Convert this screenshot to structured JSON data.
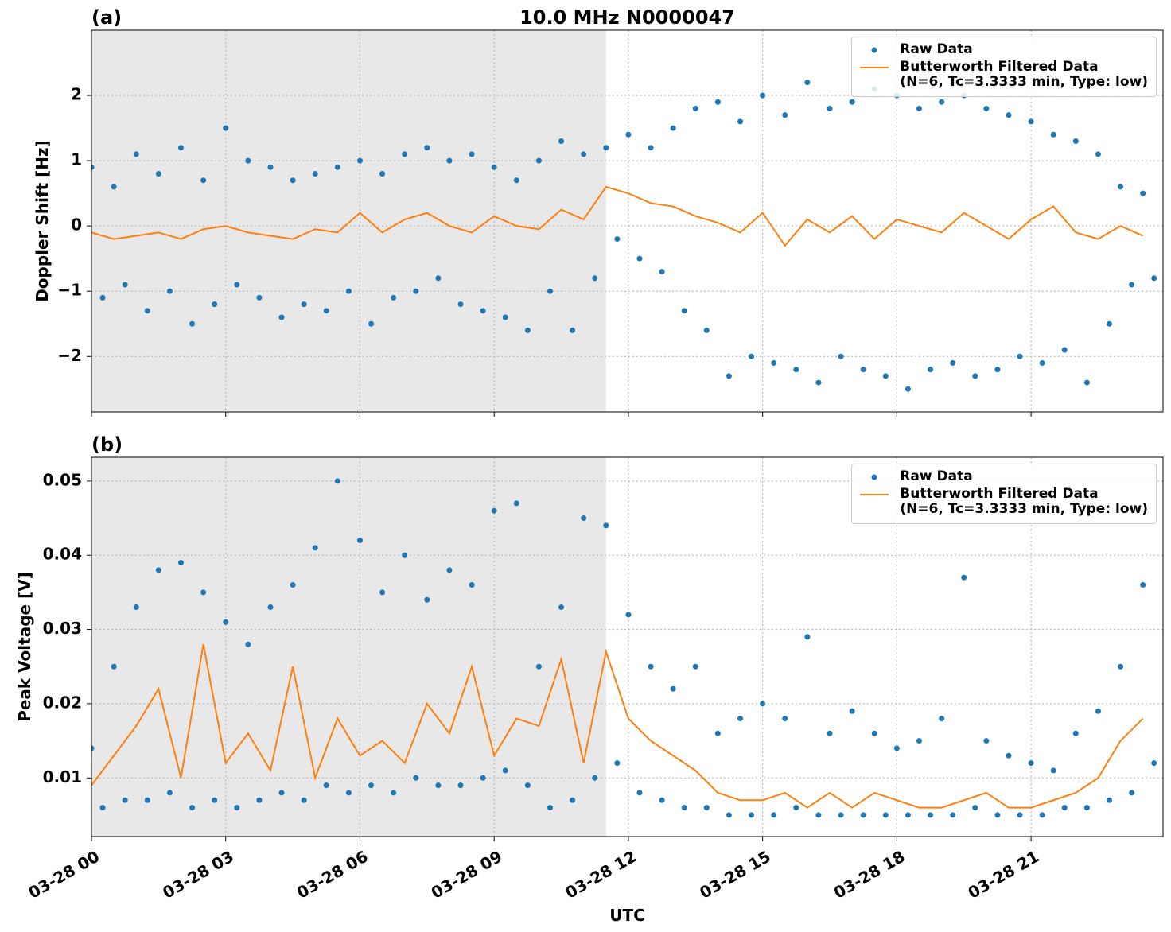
{
  "chart_data": [
    {
      "type": "scatter",
      "panel_label": "(a)",
      "title": "10.0 MHz N0000047",
      "y_label": "Doppler Shift [Hz]",
      "xlim": [
        0,
        23.95
      ],
      "ylim": [
        -2.85,
        3.0
      ],
      "xticks": [
        0,
        3,
        6,
        9,
        12,
        15,
        18,
        21
      ],
      "yticks": [
        {
          "value": -2,
          "label": "−2"
        },
        {
          "value": -1,
          "label": "−1"
        },
        0,
        1,
        2
      ],
      "grid": true,
      "shaded_span": [
        0,
        11.5
      ],
      "shade_color": "#e8e8e8",
      "legend": "upper right",
      "series": [
        {
          "name": "Raw Data",
          "mode": "markers",
          "color": "#1f77b4",
          "x": [
            0,
            0.25,
            0.5,
            0.75,
            1,
            1.25,
            1.5,
            1.75,
            2,
            2.25,
            2.5,
            2.75,
            3,
            3.25,
            3.5,
            3.75,
            4,
            4.25,
            4.5,
            4.75,
            5,
            5.25,
            5.5,
            5.75,
            6,
            6.25,
            6.5,
            6.75,
            7,
            7.25,
            7.5,
            7.75,
            8,
            8.25,
            8.5,
            8.75,
            9,
            9.25,
            9.5,
            9.75,
            10,
            10.25,
            10.5,
            10.75,
            11,
            11.25,
            11.5,
            11.75,
            12,
            12.25,
            12.5,
            12.75,
            13,
            13.25,
            13.5,
            13.75,
            14,
            14.25,
            14.5,
            14.75,
            15,
            15.25,
            15.5,
            15.75,
            16,
            16.25,
            16.5,
            16.75,
            17,
            17.25,
            17.5,
            17.75,
            18,
            18.25,
            18.5,
            18.75,
            19,
            19.25,
            19.5,
            19.75,
            20,
            20.25,
            20.5,
            20.75,
            21,
            21.25,
            21.5,
            21.75,
            22,
            22.25,
            22.5,
            22.75,
            23,
            23.25,
            23.5,
            23.75
          ],
          "values": [
            0.9,
            -1.1,
            0.6,
            -0.9,
            1.1,
            -1.3,
            0.8,
            -1.0,
            1.2,
            -1.5,
            0.7,
            -1.2,
            1.5,
            -0.9,
            1.0,
            -1.1,
            0.9,
            -1.4,
            0.7,
            -1.2,
            0.8,
            -1.3,
            0.9,
            -1.0,
            1.0,
            -1.5,
            0.8,
            -1.1,
            1.1,
            -1.0,
            1.2,
            -0.8,
            1.0,
            -1.2,
            1.1,
            -1.3,
            0.9,
            -1.4,
            0.7,
            -1.6,
            1.0,
            -1.0,
            1.3,
            -1.6,
            1.1,
            -0.8,
            1.2,
            -0.2,
            1.4,
            -0.5,
            1.2,
            -0.7,
            1.5,
            -1.3,
            1.8,
            -1.6,
            1.9,
            -2.3,
            1.6,
            -2.0,
            2.0,
            -2.1,
            1.7,
            -2.2,
            2.2,
            -2.4,
            1.8,
            -2.0,
            1.9,
            -2.2,
            2.1,
            -2.3,
            2.0,
            -2.5,
            1.8,
            -2.2,
            1.9,
            -2.1,
            2.0,
            -2.3,
            1.8,
            -2.2,
            1.7,
            -2.0,
            1.6,
            -2.1,
            1.4,
            -1.9,
            1.3,
            -2.4,
            1.1,
            -1.5,
            0.6,
            -0.9,
            0.5,
            -0.8
          ]
        },
        {
          "name": "Butterworth Filtered Data\n(N=6, Tc=3.3333 min, Type: low)",
          "mode": "line",
          "color": "#ff7f0e",
          "x": [
            0,
            0.5,
            1,
            1.5,
            2,
            2.5,
            3,
            3.5,
            4,
            4.5,
            5,
            5.5,
            6,
            6.5,
            7,
            7.5,
            8,
            8.5,
            9,
            9.5,
            10,
            10.5,
            11,
            11.5,
            12,
            12.5,
            13,
            13.5,
            14,
            14.5,
            15,
            15.5,
            16,
            16.5,
            17,
            17.5,
            18,
            18.5,
            19,
            19.5,
            20,
            20.5,
            21,
            21.5,
            22,
            22.5,
            23,
            23.5
          ],
          "values": [
            -0.1,
            -0.2,
            -0.15,
            -0.1,
            -0.2,
            -0.05,
            0.0,
            -0.1,
            -0.15,
            -0.2,
            -0.05,
            -0.1,
            0.2,
            -0.1,
            0.1,
            0.2,
            0.0,
            -0.1,
            0.15,
            0.0,
            -0.05,
            0.25,
            0.1,
            0.6,
            0.5,
            0.35,
            0.3,
            0.15,
            0.05,
            -0.1,
            0.2,
            -0.3,
            0.1,
            -0.1,
            0.15,
            -0.2,
            0.1,
            0.0,
            -0.1,
            0.2,
            0.0,
            -0.2,
            0.1,
            0.3,
            -0.1,
            -0.2,
            0.0,
            -0.15
          ]
        }
      ]
    },
    {
      "type": "scatter",
      "panel_label": "(b)",
      "y_label": "Peak Voltage [V]",
      "x_label": "UTC",
      "xlim": [
        0,
        23.95
      ],
      "ylim": [
        0.0021,
        0.0532
      ],
      "xticks": [
        {
          "value": 0,
          "label": "03-28 00"
        },
        {
          "value": 3,
          "label": "03-28 03"
        },
        {
          "value": 6,
          "label": "03-28 06"
        },
        {
          "value": 9,
          "label": "03-28 09"
        },
        {
          "value": 12,
          "label": "03-28 12"
        },
        {
          "value": 15,
          "label": "03-28 15"
        },
        {
          "value": 18,
          "label": "03-28 18"
        },
        {
          "value": 21,
          "label": "03-28 21"
        }
      ],
      "yticks": [
        0.01,
        0.02,
        0.03,
        0.04,
        0.05
      ],
      "grid": true,
      "shaded_span": [
        0,
        11.5
      ],
      "shade_color": "#e8e8e8",
      "legend": "upper right",
      "series": [
        {
          "name": "Raw Data",
          "mode": "markers",
          "color": "#1f77b4",
          "x": [
            0,
            0.25,
            0.5,
            0.75,
            1,
            1.25,
            1.5,
            1.75,
            2,
            2.25,
            2.5,
            2.75,
            3,
            3.25,
            3.5,
            3.75,
            4,
            4.25,
            4.5,
            4.75,
            5,
            5.25,
            5.5,
            5.75,
            6,
            6.25,
            6.5,
            6.75,
            7,
            7.25,
            7.5,
            7.75,
            8,
            8.25,
            8.5,
            8.75,
            9,
            9.25,
            9.5,
            9.75,
            10,
            10.25,
            10.5,
            10.75,
            11,
            11.25,
            11.5,
            11.75,
            12,
            12.25,
            12.5,
            12.75,
            13,
            13.25,
            13.5,
            13.75,
            14,
            14.25,
            14.5,
            14.75,
            15,
            15.25,
            15.5,
            15.75,
            16,
            16.25,
            16.5,
            16.75,
            17,
            17.25,
            17.5,
            17.75,
            18,
            18.25,
            18.5,
            18.75,
            19,
            19.25,
            19.5,
            19.75,
            20,
            20.25,
            20.5,
            20.75,
            21,
            21.25,
            21.5,
            21.75,
            22,
            22.25,
            22.5,
            22.75,
            23,
            23.25,
            23.5,
            23.75
          ],
          "values": [
            0.014,
            0.006,
            0.025,
            0.007,
            0.033,
            0.007,
            0.038,
            0.008,
            0.039,
            0.006,
            0.035,
            0.007,
            0.031,
            0.006,
            0.028,
            0.007,
            0.033,
            0.008,
            0.036,
            0.007,
            0.041,
            0.009,
            0.05,
            0.008,
            0.042,
            0.009,
            0.035,
            0.008,
            0.04,
            0.01,
            0.034,
            0.009,
            0.038,
            0.009,
            0.036,
            0.01,
            0.046,
            0.011,
            0.047,
            0.009,
            0.025,
            0.006,
            0.033,
            0.007,
            0.045,
            0.01,
            0.044,
            0.012,
            0.032,
            0.008,
            0.025,
            0.007,
            0.022,
            0.006,
            0.025,
            0.006,
            0.016,
            0.005,
            0.018,
            0.005,
            0.02,
            0.005,
            0.018,
            0.006,
            0.029,
            0.005,
            0.016,
            0.005,
            0.019,
            0.005,
            0.016,
            0.005,
            0.014,
            0.005,
            0.015,
            0.005,
            0.018,
            0.005,
            0.037,
            0.006,
            0.015,
            0.005,
            0.013,
            0.005,
            0.012,
            0.005,
            0.011,
            0.006,
            0.016,
            0.006,
            0.019,
            0.007,
            0.025,
            0.008,
            0.036,
            0.012
          ]
        },
        {
          "name": "Butterworth Filtered Data\n(N=6, Tc=3.3333 min, Type: low)",
          "mode": "line",
          "color": "#ff7f0e",
          "x": [
            0,
            0.5,
            1,
            1.5,
            2,
            2.5,
            3,
            3.5,
            4,
            4.5,
            5,
            5.5,
            6,
            6.5,
            7,
            7.5,
            8,
            8.5,
            9,
            9.5,
            10,
            10.5,
            11,
            11.5,
            12,
            12.5,
            13,
            13.5,
            14,
            14.5,
            15,
            15.5,
            16,
            16.5,
            17,
            17.5,
            18,
            18.5,
            19,
            19.5,
            20,
            20.5,
            21,
            21.5,
            22,
            22.5,
            23,
            23.5
          ],
          "values": [
            0.009,
            0.013,
            0.017,
            0.022,
            0.01,
            0.028,
            0.012,
            0.016,
            0.011,
            0.025,
            0.01,
            0.018,
            0.013,
            0.015,
            0.012,
            0.02,
            0.016,
            0.025,
            0.013,
            0.018,
            0.017,
            0.026,
            0.012,
            0.027,
            0.018,
            0.015,
            0.013,
            0.011,
            0.008,
            0.007,
            0.007,
            0.008,
            0.006,
            0.008,
            0.006,
            0.008,
            0.007,
            0.006,
            0.006,
            0.007,
            0.008,
            0.006,
            0.006,
            0.007,
            0.008,
            0.01,
            0.015,
            0.018
          ]
        }
      ]
    }
  ]
}
